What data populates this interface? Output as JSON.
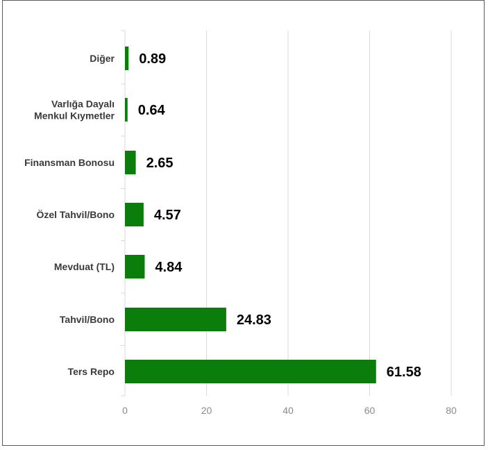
{
  "chart_data": {
    "type": "bar",
    "orientation": "horizontal",
    "categories": [
      [
        "Diğer"
      ],
      [
        "Varlığa Dayalı",
        "Menkul Kıymetler"
      ],
      [
        "Finansman Bonosu"
      ],
      [
        "Özel Tahvil/Bono"
      ],
      [
        "Mevduat (TL)"
      ],
      [
        "Tahvil/Bono"
      ],
      [
        "Ters Repo"
      ]
    ],
    "values": [
      0.89,
      0.64,
      2.65,
      4.57,
      4.84,
      24.83,
      61.58
    ],
    "value_labels": [
      "0.89",
      "0.64",
      "2.65",
      "4.57",
      "4.84",
      "24.83",
      "61.58"
    ],
    "xlim": [
      0,
      80
    ],
    "x_ticks": [
      0,
      20,
      40,
      60,
      80
    ],
    "x_tick_labels": [
      "0",
      "20",
      "40",
      "60",
      "80"
    ],
    "grid": true,
    "legend": false,
    "title": "",
    "xlabel": "",
    "ylabel": "",
    "bar_color": "#0a7d0a",
    "grid_color": "#d9d9d9"
  }
}
